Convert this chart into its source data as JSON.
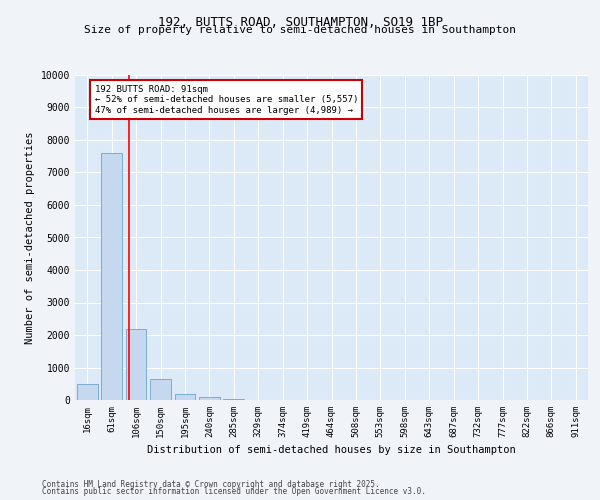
{
  "title_line1": "192, BUTTS ROAD, SOUTHAMPTON, SO19 1BP",
  "title_line2": "Size of property relative to semi-detached houses in Southampton",
  "xlabel": "Distribution of semi-detached houses by size in Southampton",
  "ylabel": "Number of semi-detached properties",
  "categories": [
    "16sqm",
    "61sqm",
    "106sqm",
    "150sqm",
    "195sqm",
    "240sqm",
    "285sqm",
    "329sqm",
    "374sqm",
    "419sqm",
    "464sqm",
    "508sqm",
    "553sqm",
    "598sqm",
    "643sqm",
    "687sqm",
    "732sqm",
    "777sqm",
    "822sqm",
    "866sqm",
    "911sqm"
  ],
  "values": [
    500,
    7600,
    2200,
    650,
    200,
    100,
    30,
    10,
    5,
    2,
    1,
    1,
    0,
    0,
    0,
    0,
    0,
    0,
    0,
    0,
    0
  ],
  "bar_color": "#c5d8ef",
  "bar_edge_color": "#7aadd4",
  "annotation_title": "192 BUTTS ROAD: 91sqm",
  "annotation_line1": "← 52% of semi-detached houses are smaller (5,557)",
  "annotation_line2": "47% of semi-detached houses are larger (4,989) →",
  "ylim": [
    0,
    10000
  ],
  "yticks": [
    0,
    1000,
    2000,
    3000,
    4000,
    5000,
    6000,
    7000,
    8000,
    9000,
    10000
  ],
  "background_color": "#dce9f7",
  "figure_background": "#f0f4f9",
  "grid_color": "#ffffff",
  "footer_line1": "Contains HM Land Registry data © Crown copyright and database right 2025.",
  "footer_line2": "Contains public sector information licensed under the Open Government Licence v3.0."
}
